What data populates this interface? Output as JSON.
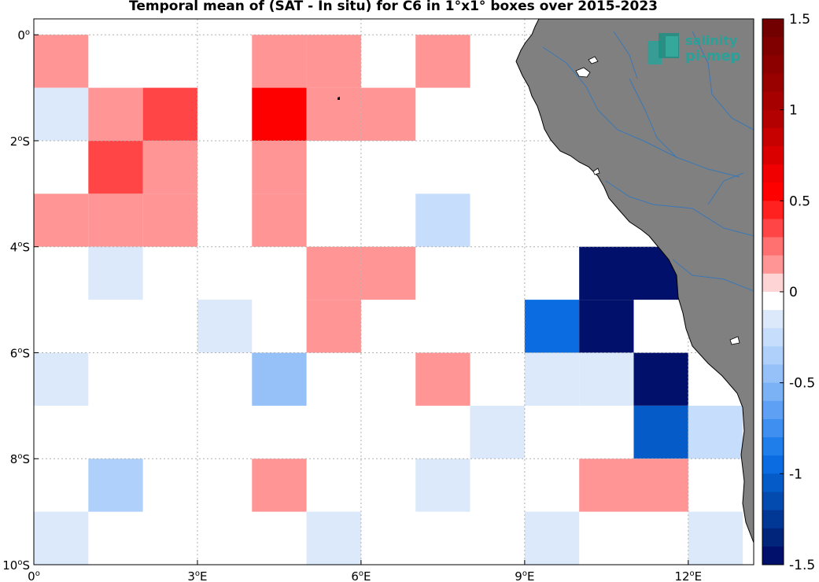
{
  "title": "Temporal mean of (SAT - In situ) for C6 in 1°x1° boxes over 2015-2023",
  "logo": {
    "line1": "salinity",
    "line2": "pi-mep",
    "color": "#2aa198"
  },
  "map": {
    "lon_range": [
      0,
      13.2
    ],
    "lat_range": [
      -10,
      0.3
    ],
    "x_ticks": [
      {
        "value": 0,
        "label": "0",
        "sup": "o"
      },
      {
        "value": 3,
        "label": "3",
        "sup": "o",
        "suffix": "E"
      },
      {
        "value": 6,
        "label": "6",
        "sup": "o",
        "suffix": "E"
      },
      {
        "value": 9,
        "label": "9",
        "sup": "o",
        "suffix": "E"
      },
      {
        "value": 12,
        "label": "12",
        "sup": "o",
        "suffix": "E"
      }
    ],
    "y_ticks": [
      {
        "value": 0,
        "label": "0",
        "sup": "o",
        "suffix": ""
      },
      {
        "value": -2,
        "label": "2",
        "sup": "o",
        "suffix": "S"
      },
      {
        "value": -4,
        "label": "4",
        "sup": "o",
        "suffix": "S"
      },
      {
        "value": -6,
        "label": "6",
        "sup": "o",
        "suffix": "S"
      },
      {
        "value": -8,
        "label": "8",
        "sup": "o",
        "suffix": "S"
      },
      {
        "value": -10,
        "label": "10",
        "sup": "o",
        "suffix": "S"
      }
    ],
    "land_color": "#808080",
    "river_color": "#3a78b5",
    "grid": true
  },
  "chart_data": {
    "type": "heatmap",
    "title": "Temporal mean of (SAT - In situ) for C6 in 1°x1° boxes over 2015-2023",
    "cell_size_deg": 1,
    "cells": [
      {
        "lon": 0,
        "lat": 0,
        "value": 0.15
      },
      {
        "lon": 4,
        "lat": 0,
        "value": 0.15
      },
      {
        "lon": 5,
        "lat": 0,
        "value": 0.15
      },
      {
        "lon": 7,
        "lat": 0,
        "value": 0.15
      },
      {
        "lon": 0,
        "lat": -1,
        "value": -0.15
      },
      {
        "lon": 1,
        "lat": -1,
        "value": 0.15
      },
      {
        "lon": 2,
        "lat": -1,
        "value": 0.35
      },
      {
        "lon": 4,
        "lat": -1,
        "value": 0.55
      },
      {
        "lon": 5,
        "lat": -1,
        "value": 0.15
      },
      {
        "lon": 6,
        "lat": -1,
        "value": 0.15
      },
      {
        "lon": 1,
        "lat": -2,
        "value": 0.35
      },
      {
        "lon": 2,
        "lat": -2,
        "value": 0.15
      },
      {
        "lon": 4,
        "lat": -2,
        "value": 0.15
      },
      {
        "lon": 0,
        "lat": -3,
        "value": 0.15
      },
      {
        "lon": 1,
        "lat": -3,
        "value": 0.15
      },
      {
        "lon": 2,
        "lat": -3,
        "value": 0.15
      },
      {
        "lon": 4,
        "lat": -3,
        "value": 0.15
      },
      {
        "lon": 7,
        "lat": -3,
        "value": -0.25
      },
      {
        "lon": 1,
        "lat": -4,
        "value": -0.15
      },
      {
        "lon": 5,
        "lat": -4,
        "value": 0.15
      },
      {
        "lon": 6,
        "lat": -4,
        "value": 0.15
      },
      {
        "lon": 10,
        "lat": -4,
        "value": -1.5
      },
      {
        "lon": 11,
        "lat": -4,
        "value": -1.5
      },
      {
        "lon": 3,
        "lat": -5,
        "value": -0.15
      },
      {
        "lon": 5,
        "lat": -5,
        "value": 0.15
      },
      {
        "lon": 9,
        "lat": -5,
        "value": -0.95
      },
      {
        "lon": 10,
        "lat": -5,
        "value": -1.5
      },
      {
        "lon": 0,
        "lat": -6,
        "value": -0.15
      },
      {
        "lon": 4,
        "lat": -6,
        "value": -0.45
      },
      {
        "lon": 7,
        "lat": -6,
        "value": 0.15
      },
      {
        "lon": 9,
        "lat": -6,
        "value": -0.15
      },
      {
        "lon": 10,
        "lat": -6,
        "value": -0.15
      },
      {
        "lon": 11,
        "lat": -6,
        "value": -1.5
      },
      {
        "lon": 8,
        "lat": -7,
        "value": -0.15
      },
      {
        "lon": 11,
        "lat": -7,
        "value": -1.05
      },
      {
        "lon": 12,
        "lat": -7,
        "value": -0.25
      },
      {
        "lon": 1,
        "lat": -8,
        "value": -0.35
      },
      {
        "lon": 4,
        "lat": -8,
        "value": 0.15
      },
      {
        "lon": 7,
        "lat": -8,
        "value": -0.15
      },
      {
        "lon": 10,
        "lat": -8,
        "value": 0.15
      },
      {
        "lon": 11,
        "lat": -8,
        "value": 0.15
      },
      {
        "lon": 0,
        "lat": -9,
        "value": -0.15
      },
      {
        "lon": 5,
        "lat": -9,
        "value": -0.15
      },
      {
        "lon": 9,
        "lat": -9,
        "value": -0.15
      },
      {
        "lon": 12,
        "lat": -9,
        "value": -0.15
      }
    ],
    "colorbar": {
      "range": [
        -1.5,
        1.5
      ],
      "n_levels": 30,
      "tick_values": [
        1.5,
        1,
        0.5,
        0,
        -0.5,
        -1,
        -1.5
      ],
      "tick_labels": [
        "1.5",
        "1",
        "0.5",
        "0",
        "-0.5",
        "-1",
        "-1.5"
      ],
      "colors_top_to_bottom": [
        "#730000",
        "#800000",
        "#8c0000",
        "#990000",
        "#a60000",
        "#b30000",
        "#c70000",
        "#db0000",
        "#f00000",
        "#ff0000",
        "#ff2020",
        "#ff4545",
        "#ff7070",
        "#ff9595",
        "#ffd4d4",
        "#ffffff",
        "#dbe9fa",
        "#c6ddfb",
        "#aed0fb",
        "#95c1f8",
        "#7bb2f6",
        "#5ea1f4",
        "#3f8ff0",
        "#1f7eea",
        "#0a6ce0",
        "#055bc8",
        "#044bb0",
        "#023895",
        "#01257a",
        "#00106b"
      ]
    }
  }
}
